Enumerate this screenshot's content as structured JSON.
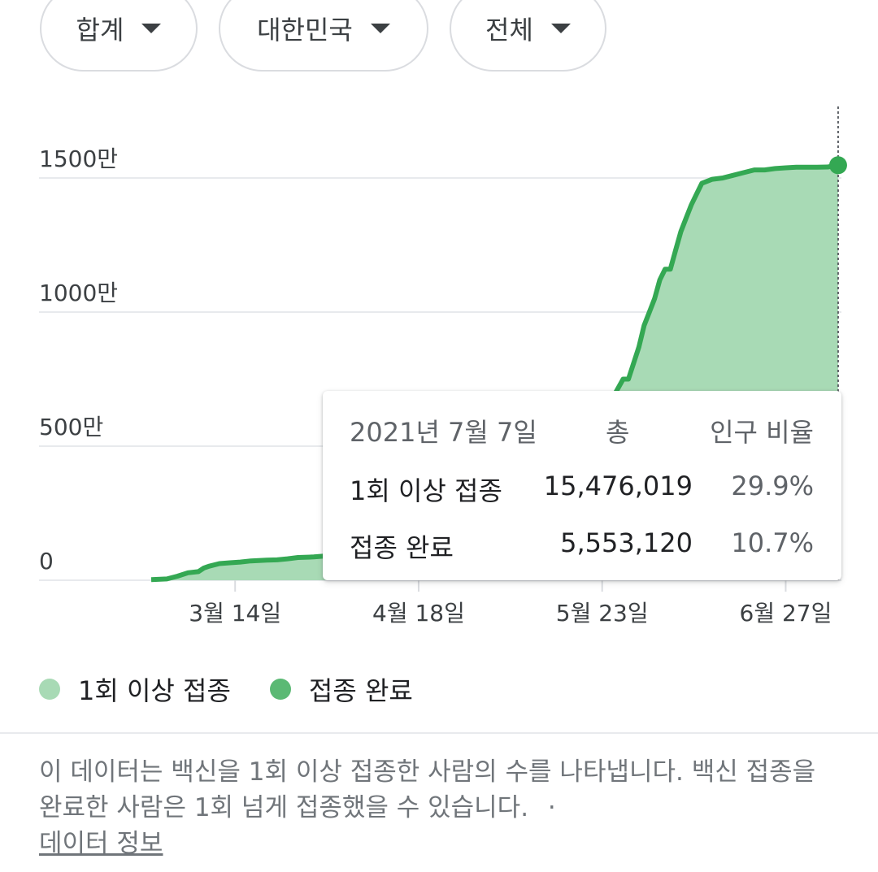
{
  "filters": [
    {
      "label": "합계"
    },
    {
      "label": "대한민국"
    },
    {
      "label": "전체"
    }
  ],
  "chart_data": {
    "type": "area",
    "y_ticks": [
      "0",
      "500만",
      "1000만",
      "1500만"
    ],
    "y_tick_values": [
      0,
      5000000,
      10000000,
      15000000
    ],
    "x_ticks": [
      "3월 14일",
      "4월 18일",
      "5월 23일",
      "6월 27일"
    ],
    "ylim": [
      0,
      17500000
    ],
    "grid": true,
    "legend_position": "bottom",
    "series": [
      {
        "name": "1회 이상 접종",
        "color": "#a8dab5",
        "x": [
          "2021-02-26",
          "2021-03-01",
          "2021-03-03",
          "2021-03-05",
          "2021-03-07",
          "2021-03-08",
          "2021-03-09",
          "2021-03-11",
          "2021-03-13",
          "2021-03-15",
          "2021-03-17",
          "2021-03-20",
          "2021-03-22",
          "2021-03-24",
          "2021-03-26",
          "2021-03-29",
          "2021-03-31",
          "2021-04-03",
          "2021-04-06",
          "2021-04-08",
          "2021-04-11",
          "2021-04-14",
          "2021-04-16",
          "2021-04-19",
          "2021-04-22",
          "2021-04-25",
          "2021-04-28",
          "2021-05-01",
          "2021-05-04",
          "2021-05-07",
          "2021-05-10",
          "2021-05-13",
          "2021-05-16",
          "2021-05-19",
          "2021-05-22",
          "2021-05-25",
          "2021-05-27",
          "2021-05-28",
          "2021-05-30",
          "2021-05-31",
          "2021-06-01",
          "2021-06-02",
          "2021-06-03",
          "2021-06-04",
          "2021-06-05",
          "2021-06-06",
          "2021-06-07",
          "2021-06-08",
          "2021-06-09",
          "2021-06-10",
          "2021-06-11",
          "2021-06-13",
          "2021-06-15",
          "2021-06-17",
          "2021-06-19",
          "2021-06-21",
          "2021-06-23",
          "2021-06-25",
          "2021-06-27",
          "2021-06-29",
          "2021-07-01",
          "2021-07-03",
          "2021-07-05",
          "2021-07-07"
        ],
        "values": [
          21000,
          50000,
          150000,
          280000,
          320000,
          450000,
          520000,
          620000,
          650000,
          680000,
          720000,
          750000,
          760000,
          800000,
          850000,
          870000,
          900000,
          950000,
          1000000,
          1100000,
          1200000,
          1300000,
          1400000,
          1500000,
          1750000,
          2000000,
          2300000,
          2600000,
          2900000,
          3200000,
          3500000,
          3800000,
          4300000,
          5000000,
          5800000,
          6800000,
          7500000,
          7500000,
          8700000,
          9500000,
          10000000,
          10500000,
          11200000,
          11600000,
          11600000,
          12300000,
          13000000,
          13500000,
          14000000,
          14400000,
          14800000,
          14950000,
          15000000,
          15100000,
          15200000,
          15300000,
          15300000,
          15350000,
          15380000,
          15400000,
          15400000,
          15400000,
          15410000,
          15476019
        ]
      },
      {
        "name": "접종 완료",
        "color": "#34a853",
        "values": []
      }
    ]
  },
  "tooltip": {
    "date": "2021년 7월 7일",
    "col_total": "총",
    "col_ratio": "인구 비율",
    "rows": [
      {
        "label": "1회 이상 접종",
        "total": "15,476,019",
        "ratio": "29.9%"
      },
      {
        "label": "접종 완료",
        "total": "5,553,120",
        "ratio": "10.7%"
      }
    ]
  },
  "legend": [
    {
      "label": "1회 이상 접종",
      "color": "#a8dab5"
    },
    {
      "label": "접종 완료",
      "color": "#5bb974"
    }
  ],
  "note": {
    "text": "이 데이터는 백신을 1회 이상 접종한 사람의 수를 나타냅니다. 백신 접종을 완료한 사람은 1회 넘게 접종했을 수 있습니다.",
    "separator": "·",
    "link": "데이터 정보"
  }
}
